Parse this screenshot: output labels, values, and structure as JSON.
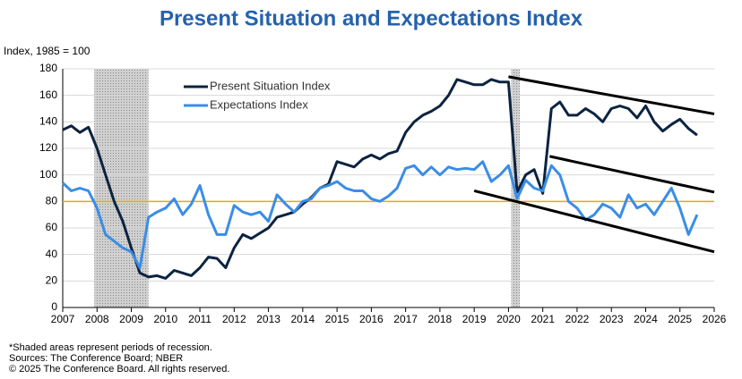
{
  "chart_data": {
    "type": "line",
    "title": "Present Situation and Expectations Index",
    "y_axis_label": "Index, 1985 = 100",
    "footnotes": [
      "*Shaded areas represent periods of recession.",
      "Sources:  The Conference Board;  NBER",
      "© 2025 The Conference Board. All rights reserved."
    ],
    "x": [
      2007.0,
      2007.25,
      2007.5,
      2007.75,
      2008.0,
      2008.25,
      2008.5,
      2008.75,
      2009.0,
      2009.25,
      2009.5,
      2009.75,
      2010.0,
      2010.25,
      2010.5,
      2010.75,
      2011.0,
      2011.25,
      2011.5,
      2011.75,
      2012.0,
      2012.25,
      2012.5,
      2012.75,
      2013.0,
      2013.25,
      2013.5,
      2013.75,
      2014.0,
      2014.25,
      2014.5,
      2014.75,
      2015.0,
      2015.25,
      2015.5,
      2015.75,
      2016.0,
      2016.25,
      2016.5,
      2016.75,
      2017.0,
      2017.25,
      2017.5,
      2017.75,
      2018.0,
      2018.25,
      2018.5,
      2018.75,
      2019.0,
      2019.25,
      2019.5,
      2019.75,
      2020.0,
      2020.25,
      2020.5,
      2020.75,
      2021.0,
      2021.25,
      2021.5,
      2021.75,
      2022.0,
      2022.25,
      2022.5,
      2022.75,
      2023.0,
      2023.25,
      2023.5,
      2023.75,
      2024.0,
      2024.25,
      2024.5,
      2024.75,
      2025.0,
      2025.25,
      2025.5
    ],
    "series": [
      {
        "name": "Present Situation Index",
        "color": "#0c2340",
        "values": [
          134,
          137,
          132,
          136,
          120,
          100,
          80,
          65,
          45,
          26,
          23,
          24,
          22,
          28,
          26,
          24,
          30,
          38,
          37,
          30,
          45,
          55,
          52,
          56,
          60,
          68,
          70,
          72,
          78,
          83,
          90,
          93,
          110,
          108,
          106,
          112,
          115,
          112,
          116,
          118,
          132,
          140,
          145,
          148,
          152,
          160,
          172,
          170,
          168,
          168,
          172,
          170,
          170,
          87,
          100,
          104,
          86,
          150,
          155,
          145,
          145,
          150,
          146,
          140,
          150,
          152,
          150,
          143,
          152,
          140,
          133,
          138,
          142,
          135,
          130
        ]
      },
      {
        "name": "Expectations Index",
        "color": "#3a8de6",
        "values": [
          94,
          88,
          90,
          88,
          75,
          55,
          50,
          45,
          42,
          30,
          68,
          72,
          75,
          82,
          70,
          78,
          92,
          70,
          55,
          55,
          77,
          72,
          70,
          72,
          65,
          85,
          78,
          72,
          80,
          82,
          90,
          92,
          95,
          90,
          88,
          88,
          82,
          80,
          84,
          90,
          105,
          107,
          100,
          106,
          100,
          106,
          104,
          105,
          104,
          110,
          95,
          100,
          107,
          82,
          96,
          90,
          88,
          107,
          100,
          80,
          75,
          66,
          70,
          78,
          75,
          68,
          85,
          75,
          78,
          70,
          80,
          90,
          75,
          55,
          70
        ]
      }
    ],
    "recessions": [
      [
        2007.92,
        2009.5
      ],
      [
        2020.08,
        2020.33
      ]
    ],
    "reference_line": 80,
    "reference_color": "#f0a800",
    "trend_lines": [
      {
        "x": [
          2020.0,
          2026.0
        ],
        "y": [
          174,
          146
        ]
      },
      {
        "x": [
          2021.2,
          2026.0
        ],
        "y": [
          114,
          87
        ]
      },
      {
        "x": [
          2019.0,
          2026.0
        ],
        "y": [
          88,
          42
        ]
      }
    ],
    "xlim": [
      2007,
      2026
    ],
    "xticks": [
      2007,
      2008,
      2009,
      2010,
      2011,
      2012,
      2013,
      2014,
      2015,
      2016,
      2017,
      2018,
      2019,
      2020,
      2021,
      2022,
      2023,
      2024,
      2025,
      2026
    ],
    "ylim": [
      0,
      180
    ],
    "yticks": [
      0,
      20,
      40,
      60,
      80,
      100,
      120,
      140,
      160,
      180
    ],
    "grid": true
  }
}
